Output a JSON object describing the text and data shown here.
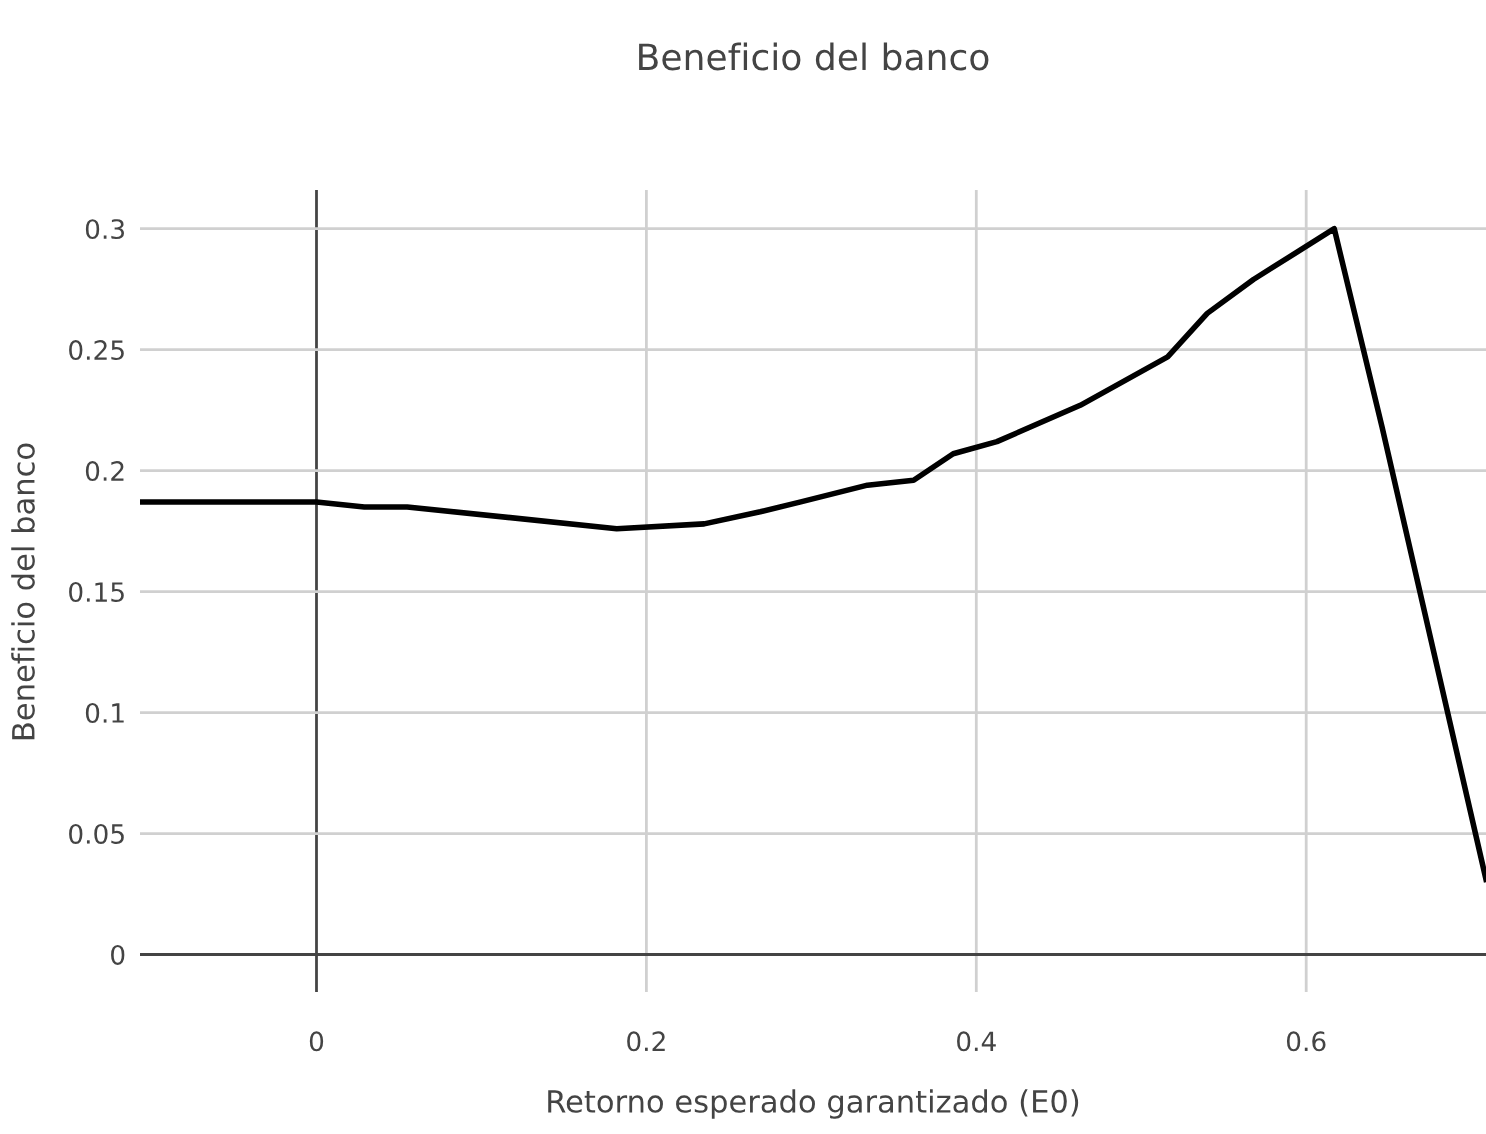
{
  "chart_data": {
    "type": "line",
    "title": "Beneficio del banco",
    "xlabel": "Retorno esperado garantizado (E0)",
    "ylabel": "Beneficio del banco",
    "series": [
      {
        "color": "#000000",
        "x": [
          -0.107,
          0,
          0.029,
          0.055,
          0.182,
          0.235,
          0.269,
          0.293,
          0.334,
          0.362,
          0.386,
          0.4125,
          0.463,
          0.516,
          0.54,
          0.568,
          0.617,
          0.646,
          0.709
        ],
        "values": [
          0.187,
          0.187,
          0.185,
          0.185,
          0.176,
          0.178,
          0.183,
          0.187,
          0.194,
          0.196,
          0.207,
          0.212,
          0.227,
          0.247,
          0.265,
          0.279,
          0.3,
          0.218,
          0.031
        ]
      }
    ],
    "xlim": [
      -0.107,
      0.709
    ],
    "ylim": [
      -0.0155,
      0.316
    ],
    "xticks": [
      0,
      0.2,
      0.4,
      0.6
    ],
    "yticks": [
      0,
      0.05,
      0.1,
      0.15,
      0.2,
      0.25,
      0.3
    ],
    "grid": true,
    "legend": false,
    "marker": "none",
    "line_style": "solid"
  }
}
